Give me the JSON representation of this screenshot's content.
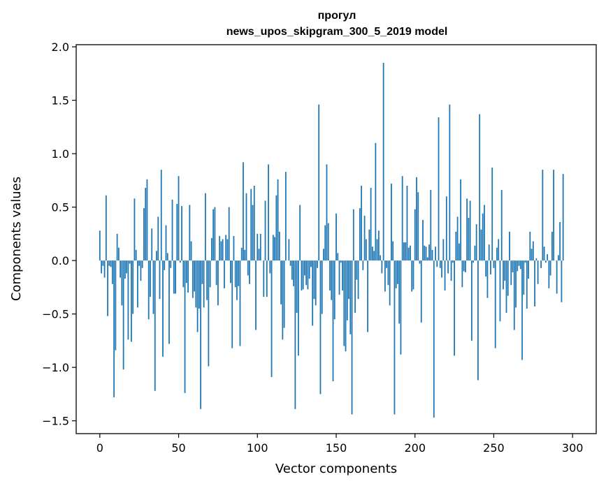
{
  "chart_data": {
    "type": "bar",
    "title_line1": "прогул",
    "title_line2": "news_upos_skipgram_300_5_2019 model",
    "xlabel": "Vector components",
    "ylabel": "Components values",
    "xlim": [
      -15,
      315
    ],
    "ylim": [
      -1.62,
      2.02
    ],
    "xticks": [
      0,
      50,
      100,
      150,
      200,
      250,
      300
    ],
    "yticks": [
      -1.5,
      -1.0,
      -0.5,
      0.0,
      0.5,
      1.0,
      1.5,
      2.0
    ],
    "ytick_labels": [
      "−1.5",
      "−1.0",
      "−0.5",
      "0.0",
      "0.5",
      "1.0",
      "1.5",
      "2.0"
    ],
    "grid": false,
    "bar_color": "#1f77b4",
    "values": [
      0.28,
      -0.12,
      -0.05,
      -0.16,
      0.61,
      -0.52,
      -0.05,
      -0.06,
      -0.22,
      -1.28,
      -0.84,
      0.25,
      0.12,
      -0.16,
      -0.42,
      -1.02,
      -0.17,
      -0.12,
      -0.74,
      -0.03,
      -0.76,
      -0.5,
      0.58,
      0.1,
      -0.44,
      -0.05,
      -0.19,
      -0.07,
      0.49,
      0.68,
      0.76,
      -0.55,
      -0.34,
      0.3,
      -0.5,
      -1.22,
      0.09,
      0.41,
      -0.36,
      0.85,
      -0.9,
      -0.09,
      0.33,
      0.07,
      -0.78,
      -0.07,
      0.57,
      -0.31,
      -0.31,
      0.53,
      0.79,
      -0.02,
      0.51,
      -0.25,
      -1.24,
      -0.21,
      -0.3,
      0.52,
      0.18,
      -0.35,
      -0.29,
      -0.44,
      -0.67,
      -0.45,
      -1.39,
      -0.22,
      -0.44,
      0.63,
      -0.37,
      -0.99,
      -0.25,
      0.21,
      0.48,
      0.5,
      -0.23,
      -0.42,
      0.23,
      0.18,
      0.2,
      -0.26,
      0.24,
      0.2,
      0.5,
      -0.21,
      -0.82,
      0.23,
      -0.25,
      -0.37,
      -0.24,
      -0.8,
      0.12,
      0.92,
      0.1,
      0.63,
      -0.14,
      -0.22,
      0.67,
      0.52,
      0.7,
      -0.65,
      0.25,
      0.11,
      0.25,
      0.0,
      -0.34,
      0.56,
      -0.34,
      0.9,
      -0.12,
      -1.09,
      0.24,
      0.22,
      0.61,
      0.76,
      0.27,
      -0.41,
      -0.74,
      -0.63,
      0.83,
      0.0,
      0.2,
      -0.05,
      -0.18,
      -0.24,
      -1.39,
      -0.49,
      -0.89,
      0.52,
      -0.28,
      -0.27,
      -0.14,
      -0.23,
      -0.27,
      -0.17,
      -0.06,
      -0.61,
      -0.36,
      -0.42,
      -0.07,
      1.46,
      -1.25,
      -0.5,
      0.11,
      0.33,
      0.9,
      0.35,
      -0.28,
      -0.37,
      -1.13,
      -0.55,
      0.44,
      0.07,
      -0.32,
      -0.02,
      -0.28,
      -0.8,
      -0.85,
      -0.56,
      -0.36,
      -0.69,
      -1.44,
      0.48,
      -0.49,
      -0.18,
      -0.36,
      0.49,
      0.7,
      -0.09,
      0.42,
      0.2,
      -0.67,
      0.29,
      0.68,
      0.13,
      0.09,
      1.1,
      0.2,
      0.28,
      0.05,
      -0.12,
      1.85,
      -0.29,
      -0.07,
      -0.23,
      -0.42,
      0.72,
      0.18,
      -1.44,
      -0.26,
      -0.22,
      -0.59,
      -0.88,
      0.79,
      0.17,
      0.17,
      0.7,
      0.12,
      0.14,
      -0.29,
      -0.27,
      0.48,
      0.78,
      0.64,
      -0.03,
      -0.58,
      0.38,
      0.14,
      0.13,
      0.03,
      0.15,
      0.66,
      0.1,
      -1.47,
      0.13,
      -0.06,
      1.34,
      -0.07,
      -0.16,
      0.2,
      -0.28,
      0.6,
      -0.12,
      1.46,
      -0.19,
      -0.02,
      -0.89,
      0.27,
      0.41,
      0.16,
      0.76,
      -0.25,
      -0.1,
      -0.11,
      0.58,
      0.4,
      0.56,
      -0.75,
      -0.02,
      0.14,
      0.34,
      -1.12,
      1.37,
      0.29,
      0.44,
      0.52,
      -0.15,
      -0.35,
      0.15,
      -0.13,
      0.87,
      -0.07,
      -0.82,
      0.12,
      0.2,
      -0.57,
      0.66,
      -0.27,
      -0.19,
      -0.49,
      -0.33,
      0.27,
      -0.23,
      -0.11,
      -0.65,
      -0.44,
      -0.1,
      -0.05,
      -0.08,
      -0.93,
      -0.32,
      -0.02,
      -0.45,
      -0.17,
      0.27,
      0.11,
      0.18,
      -0.43,
      0.02,
      -0.22,
      0.0,
      -0.07,
      0.85,
      0.13,
      -0.02,
      0.06,
      -0.26,
      -0.14,
      0.27,
      0.85,
      0.0,
      -0.31,
      0.05,
      0.36,
      -0.39,
      0.81
    ]
  }
}
